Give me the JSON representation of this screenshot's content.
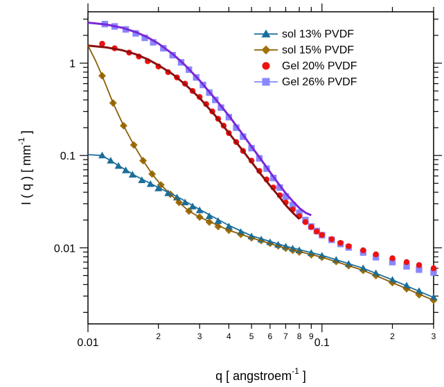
{
  "chart_data": {
    "type": "scatter",
    "title": "",
    "xscale": "log",
    "yscale": "log",
    "xlim": [
      0.01,
      0.3
    ],
    "ylim": [
      0.0015,
      3.6
    ],
    "xlabel": {
      "main": "q  [ angstroem",
      "sup": "-1",
      "tail": " ]"
    },
    "ylabel": {
      "main": "I ( q )   [ mm",
      "sup": "-1",
      "tail": " ]"
    },
    "x_major_ticks": [
      {
        "value": 0.01,
        "label": "0.01"
      },
      {
        "value": 0.1,
        "label": "0.1"
      }
    ],
    "x_minor_ticks": [
      {
        "value": 0.02,
        "label": "2"
      },
      {
        "value": 0.03,
        "label": "3"
      },
      {
        "value": 0.04,
        "label": "4"
      },
      {
        "value": 0.05,
        "label": "5"
      },
      {
        "value": 0.06,
        "label": "6"
      },
      {
        "value": 0.07,
        "label": "7"
      },
      {
        "value": 0.08,
        "label": "8"
      },
      {
        "value": 0.09,
        "label": "9"
      },
      {
        "value": 0.2,
        "label": "2"
      },
      {
        "value": 0.3,
        "label": "3"
      }
    ],
    "y_major_ticks": [
      {
        "value": 0.01,
        "label": "0.01"
      },
      {
        "value": 0.1,
        "label": "0.1"
      },
      {
        "value": 1,
        "label": "1"
      }
    ],
    "legend_position": "top-right",
    "series": [
      {
        "name": "sol 13% PVDF",
        "marker": "triangle",
        "color": "#1a6e9a",
        "points": [
          [
            0.0115,
            0.1
          ],
          [
            0.0125,
            0.088
          ],
          [
            0.0135,
            0.077
          ],
          [
            0.0145,
            0.069
          ],
          [
            0.0155,
            0.062
          ],
          [
            0.017,
            0.054
          ],
          [
            0.0185,
            0.049
          ],
          [
            0.02,
            0.044
          ],
          [
            0.022,
            0.039
          ],
          [
            0.024,
            0.035
          ],
          [
            0.026,
            0.031
          ],
          [
            0.028,
            0.028
          ],
          [
            0.03,
            0.0255
          ],
          [
            0.033,
            0.022
          ],
          [
            0.036,
            0.0195
          ],
          [
            0.04,
            0.017
          ],
          [
            0.045,
            0.0148
          ],
          [
            0.05,
            0.0133
          ],
          [
            0.055,
            0.0123
          ],
          [
            0.06,
            0.0115
          ],
          [
            0.065,
            0.0108
          ],
          [
            0.07,
            0.0103
          ],
          [
            0.075,
            0.0098
          ],
          [
            0.08,
            0.0094
          ],
          [
            0.09,
            0.0088
          ],
          [
            0.1,
            0.0082
          ],
          [
            0.115,
            0.0074
          ],
          [
            0.13,
            0.0067
          ],
          [
            0.15,
            0.006
          ],
          [
            0.17,
            0.0053
          ],
          [
            0.2,
            0.0045
          ],
          [
            0.23,
            0.0039
          ],
          [
            0.26,
            0.0034
          ],
          [
            0.3,
            0.0029
          ]
        ],
        "fit": [
          [
            0.01,
            0.102
          ],
          [
            0.0115,
            0.1
          ],
          [
            0.0135,
            0.078
          ],
          [
            0.016,
            0.06
          ],
          [
            0.02,
            0.045
          ],
          [
            0.025,
            0.034
          ],
          [
            0.03,
            0.026
          ],
          [
            0.04,
            0.0175
          ],
          [
            0.05,
            0.0135
          ],
          [
            0.07,
            0.0104
          ],
          [
            0.1,
            0.0083
          ],
          [
            0.15,
            0.006
          ],
          [
            0.2,
            0.0045
          ],
          [
            0.3,
            0.0029
          ]
        ]
      },
      {
        "name": "sol 15% PVDF",
        "marker": "diamond",
        "color": "#a0700a",
        "points": [
          [
            0.0115,
            0.73
          ],
          [
            0.0128,
            0.37
          ],
          [
            0.0142,
            0.21
          ],
          [
            0.0157,
            0.13
          ],
          [
            0.0172,
            0.088
          ],
          [
            0.0188,
            0.063
          ],
          [
            0.0205,
            0.048
          ],
          [
            0.0225,
            0.038
          ],
          [
            0.0245,
            0.031
          ],
          [
            0.027,
            0.025
          ],
          [
            0.03,
            0.0215
          ],
          [
            0.033,
            0.019
          ],
          [
            0.036,
            0.017
          ],
          [
            0.04,
            0.0155
          ],
          [
            0.045,
            0.014
          ],
          [
            0.05,
            0.0128
          ],
          [
            0.055,
            0.012
          ],
          [
            0.06,
            0.0112
          ],
          [
            0.065,
            0.0105
          ],
          [
            0.07,
            0.0099
          ],
          [
            0.075,
            0.0094
          ],
          [
            0.08,
            0.009
          ],
          [
            0.09,
            0.0084
          ],
          [
            0.1,
            0.0079
          ],
          [
            0.115,
            0.0071
          ],
          [
            0.13,
            0.0064
          ],
          [
            0.15,
            0.0057
          ],
          [
            0.17,
            0.005
          ],
          [
            0.2,
            0.0042
          ],
          [
            0.23,
            0.0036
          ],
          [
            0.26,
            0.0031
          ],
          [
            0.3,
            0.0027
          ]
        ],
        "fit": [
          [
            0.01,
            1.55
          ],
          [
            0.0108,
            1.05
          ],
          [
            0.0115,
            0.73
          ],
          [
            0.0128,
            0.37
          ],
          [
            0.0142,
            0.21
          ],
          [
            0.0157,
            0.13
          ],
          [
            0.0172,
            0.088
          ],
          [
            0.0188,
            0.063
          ],
          [
            0.0205,
            0.048
          ],
          [
            0.0225,
            0.038
          ],
          [
            0.0245,
            0.031
          ],
          [
            0.027,
            0.025
          ],
          [
            0.03,
            0.0215
          ],
          [
            0.035,
            0.018
          ],
          [
            0.04,
            0.0155
          ],
          [
            0.05,
            0.0128
          ],
          [
            0.07,
            0.0099
          ],
          [
            0.1,
            0.0079
          ],
          [
            0.15,
            0.0057
          ],
          [
            0.2,
            0.0042
          ],
          [
            0.3,
            0.0027
          ]
        ]
      },
      {
        "name": "Gel 20% PVDF",
        "marker": "circle",
        "color": "#ee1111",
        "points": [
          [
            0.0115,
            1.62
          ],
          [
            0.013,
            1.45
          ],
          [
            0.015,
            1.3
          ],
          [
            0.0165,
            1.18
          ],
          [
            0.018,
            1.05
          ],
          [
            0.02,
            0.92
          ],
          [
            0.022,
            0.8
          ],
          [
            0.024,
            0.7
          ],
          [
            0.026,
            0.6
          ],
          [
            0.028,
            0.5
          ],
          [
            0.03,
            0.43
          ],
          [
            0.032,
            0.36
          ],
          [
            0.034,
            0.3
          ],
          [
            0.036,
            0.25
          ],
          [
            0.038,
            0.21
          ],
          [
            0.04,
            0.175
          ],
          [
            0.043,
            0.14
          ],
          [
            0.046,
            0.112
          ],
          [
            0.05,
            0.088
          ],
          [
            0.054,
            0.068
          ],
          [
            0.058,
            0.055
          ],
          [
            0.062,
            0.045
          ],
          [
            0.066,
            0.037
          ],
          [
            0.07,
            0.031
          ],
          [
            0.075,
            0.026
          ],
          [
            0.08,
            0.022
          ],
          [
            0.085,
            0.019
          ],
          [
            0.09,
            0.0168
          ],
          [
            0.095,
            0.015
          ],
          [
            0.1,
            0.0138
          ],
          [
            0.11,
            0.0124
          ],
          [
            0.12,
            0.0113
          ],
          [
            0.13,
            0.0104
          ],
          [
            0.15,
            0.0094
          ],
          [
            0.17,
            0.0085
          ],
          [
            0.2,
            0.0077
          ],
          [
            0.23,
            0.007
          ],
          [
            0.26,
            0.0065
          ],
          [
            0.3,
            0.006
          ]
        ],
        "fit": [
          [
            0.01,
            1.55
          ],
          [
            0.012,
            1.48
          ],
          [
            0.014,
            1.38
          ],
          [
            0.016,
            1.25
          ],
          [
            0.018,
            1.1
          ],
          [
            0.02,
            0.95
          ],
          [
            0.023,
            0.76
          ],
          [
            0.026,
            0.59
          ],
          [
            0.03,
            0.42
          ],
          [
            0.035,
            0.27
          ],
          [
            0.04,
            0.175
          ],
          [
            0.045,
            0.12
          ],
          [
            0.05,
            0.085
          ],
          [
            0.055,
            0.062
          ],
          [
            0.06,
            0.047
          ],
          [
            0.065,
            0.037
          ],
          [
            0.07,
            0.029
          ],
          [
            0.075,
            0.024
          ],
          [
            0.08,
            0.0205
          ]
        ]
      },
      {
        "name": "Gel 26% PVDF",
        "marker": "square",
        "color": "#8888ff",
        "points": [
          [
            0.0118,
            2.65
          ],
          [
            0.013,
            2.5
          ],
          [
            0.0145,
            2.32
          ],
          [
            0.016,
            2.1
          ],
          [
            0.0175,
            1.88
          ],
          [
            0.019,
            1.68
          ],
          [
            0.021,
            1.45
          ],
          [
            0.023,
            1.22
          ],
          [
            0.025,
            1.02
          ],
          [
            0.027,
            0.85
          ],
          [
            0.029,
            0.7
          ],
          [
            0.031,
            0.58
          ],
          [
            0.033,
            0.48
          ],
          [
            0.035,
            0.4
          ],
          [
            0.037,
            0.33
          ],
          [
            0.04,
            0.26
          ],
          [
            0.043,
            0.2
          ],
          [
            0.046,
            0.16
          ],
          [
            0.05,
            0.12
          ],
          [
            0.054,
            0.093
          ],
          [
            0.058,
            0.072
          ],
          [
            0.062,
            0.057
          ],
          [
            0.066,
            0.045
          ],
          [
            0.07,
            0.036
          ],
          [
            0.075,
            0.029
          ],
          [
            0.08,
            0.024
          ],
          [
            0.085,
            0.02
          ],
          [
            0.09,
            0.017
          ],
          [
            0.095,
            0.0152
          ],
          [
            0.1,
            0.0137
          ],
          [
            0.11,
            0.0122
          ],
          [
            0.12,
            0.011
          ],
          [
            0.13,
            0.0101
          ],
          [
            0.15,
            0.0089
          ],
          [
            0.17,
            0.0079
          ],
          [
            0.2,
            0.007
          ],
          [
            0.23,
            0.0063
          ],
          [
            0.26,
            0.0058
          ],
          [
            0.3,
            0.0054
          ]
        ],
        "fit": [
          [
            0.01,
            2.75
          ],
          [
            0.012,
            2.62
          ],
          [
            0.014,
            2.42
          ],
          [
            0.016,
            2.17
          ],
          [
            0.018,
            1.9
          ],
          [
            0.02,
            1.63
          ],
          [
            0.023,
            1.26
          ],
          [
            0.026,
            0.95
          ],
          [
            0.03,
            0.65
          ],
          [
            0.035,
            0.41
          ],
          [
            0.04,
            0.27
          ],
          [
            0.045,
            0.18
          ],
          [
            0.05,
            0.125
          ],
          [
            0.055,
            0.09
          ],
          [
            0.06,
            0.066
          ],
          [
            0.065,
            0.05
          ],
          [
            0.07,
            0.039
          ],
          [
            0.075,
            0.032
          ],
          [
            0.08,
            0.027
          ],
          [
            0.085,
            0.024
          ],
          [
            0.09,
            0.0225
          ]
        ]
      }
    ]
  }
}
